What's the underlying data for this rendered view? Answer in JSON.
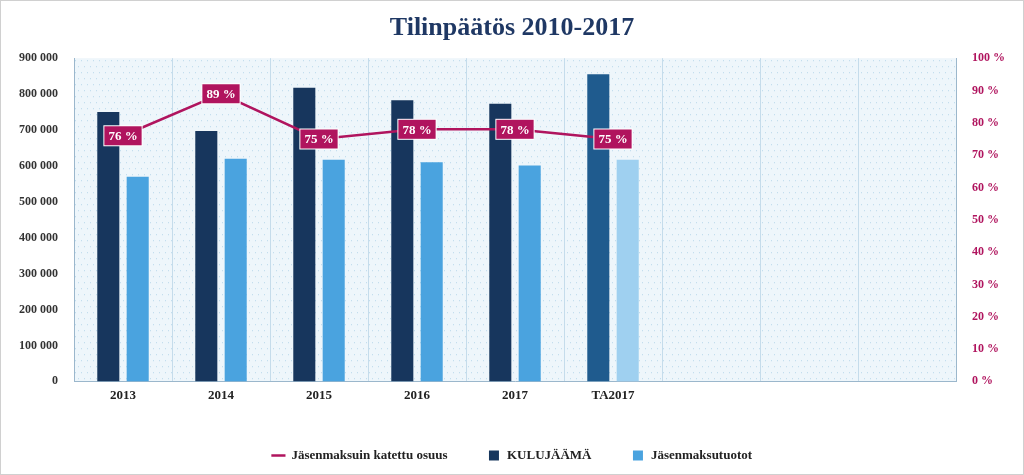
{
  "chart_data": {
    "type": "bar",
    "title": "Tilinpäätös 2010-2017",
    "categories": [
      "2013",
      "2014",
      "2015",
      "2016",
      "2017",
      "TA2017",
      null,
      null,
      null
    ],
    "series": [
      {
        "name": "KULUJÄÄMÄ",
        "type": "bar",
        "color": "#17365d",
        "colors": [
          "#17365d",
          "#17365d",
          "#17365d",
          "#17365d",
          "#17365d",
          "#1f5b8e",
          "#17365d",
          "#17365d",
          "#17365d"
        ],
        "values": [
          750000,
          697000,
          818000,
          783000,
          773000,
          855000,
          null,
          null,
          null
        ]
      },
      {
        "name": "Jäsenmaksutuotot",
        "type": "bar",
        "color": "#4aa3df",
        "colors": [
          "#4aa3df",
          "#4aa3df",
          "#4aa3df",
          "#4aa3df",
          "#4aa3df",
          "#9fd0f0",
          "#4aa3df",
          "#4aa3df",
          "#4aa3df"
        ],
        "values": [
          570000,
          620000,
          617000,
          610000,
          601000,
          617000,
          null,
          null,
          null
        ]
      },
      {
        "name": "Jäsenmaksuin katettu osuus",
        "type": "line",
        "axis": "y2",
        "color": "#b0145e",
        "data_labels": true,
        "values": [
          76,
          89,
          75,
          78,
          78,
          75,
          null,
          null,
          null
        ],
        "value_labels": [
          "76 %",
          "89 %",
          "75 %",
          "78 %",
          "78 %",
          "75 %",
          null,
          null,
          null
        ]
      }
    ],
    "ylim": [
      0,
      900000
    ],
    "yticks": [
      0,
      {
        "value": 100000,
        "label": "100 000"
      },
      {
        "value": 200000,
        "label": "200 000"
      },
      {
        "value": 300000,
        "label": "300 000"
      },
      {
        "value": 400000,
        "label": "400 000"
      },
      {
        "value": 500000,
        "label": "500 000"
      },
      {
        "value": 600000,
        "label": "600 000"
      },
      {
        "value": 700000,
        "label": "700 000"
      },
      {
        "value": 800000,
        "label": "800 000"
      },
      {
        "value": 900000,
        "label": "900 000"
      }
    ],
    "y2lim": [
      0,
      100
    ],
    "y2ticks": [
      {
        "value": 0,
        "label": "0 %"
      },
      {
        "value": 10,
        "label": "10 %"
      },
      {
        "value": 20,
        "label": "20 %"
      },
      {
        "value": 30,
        "label": "30 %"
      },
      {
        "value": 40,
        "label": "40 %"
      },
      {
        "value": 50,
        "label": "50 %"
      },
      {
        "value": 60,
        "label": "60 %"
      },
      {
        "value": 70,
        "label": "70 %"
      },
      {
        "value": 80,
        "label": "80 %"
      },
      {
        "value": 90,
        "label": "90 %"
      },
      {
        "value": 100,
        "label": "100 %"
      }
    ],
    "grid": true,
    "legend": "bottom"
  }
}
